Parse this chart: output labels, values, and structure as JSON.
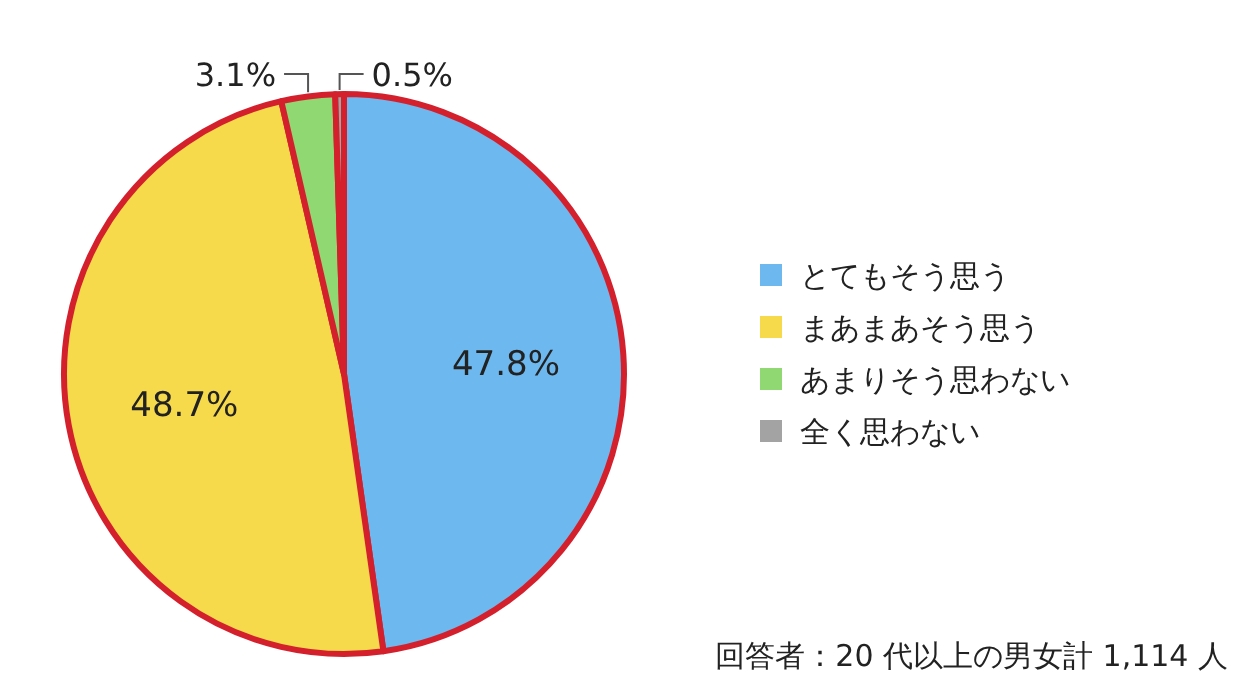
{
  "chart_data": {
    "type": "pie",
    "categories": [
      "とてもそう思う",
      "まあまあそう思う",
      "あまりそう思わない",
      "全く思わない"
    ],
    "values": [
      47.8,
      48.7,
      3.1,
      0.5
    ],
    "colors": [
      "#6db8ee",
      "#f6da4b",
      "#8fd872",
      "#a3a3a3"
    ],
    "value_labels": [
      "47.8%",
      "48.7%",
      "3.1%",
      "0.5%"
    ],
    "legend": "right",
    "annotations": [
      "回答者：20 代以上の男女計 1,114 人"
    ]
  }
}
